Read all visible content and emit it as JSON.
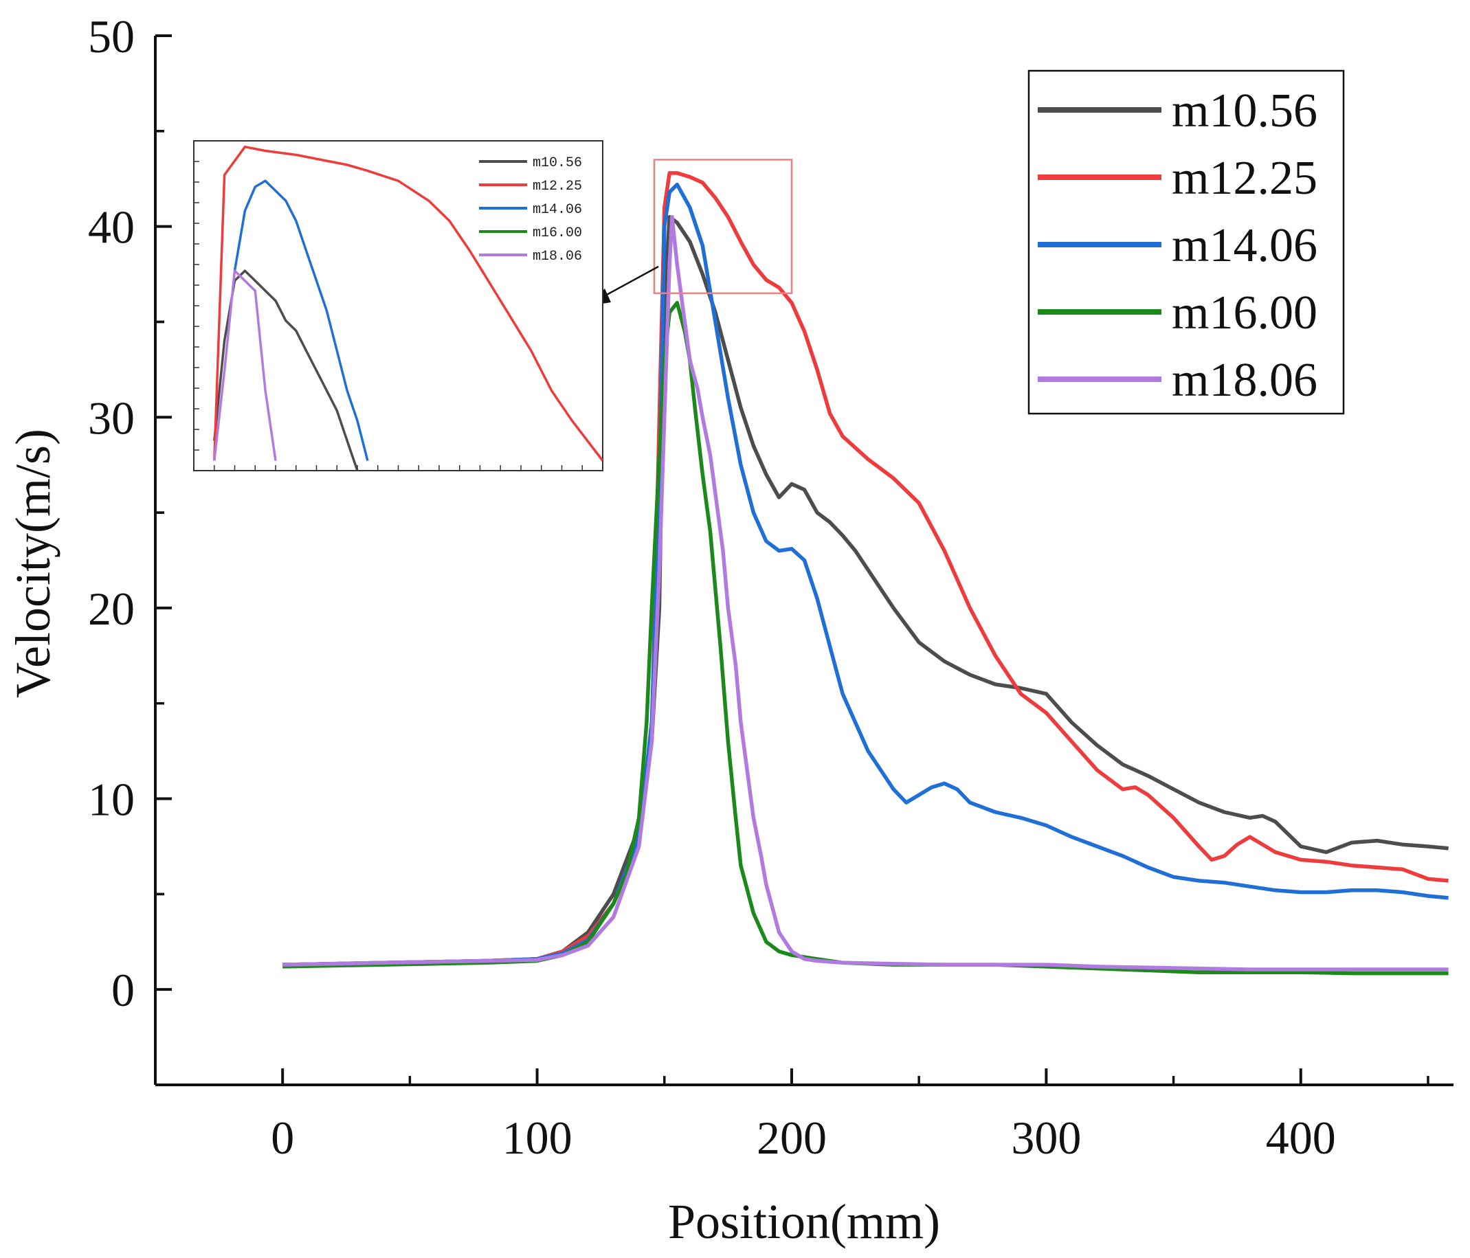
{
  "chart_data": {
    "type": "line",
    "xlabel": "Position(mm)",
    "ylabel": "Velocity(m/s)",
    "xlim": [
      -50,
      460
    ],
    "ylim": [
      -5,
      50
    ],
    "xticks": [
      0,
      100,
      200,
      300,
      400
    ],
    "yticks": [
      0,
      10,
      20,
      30,
      40,
      50
    ],
    "grid": false,
    "legend_position": "top-right",
    "series": [
      {
        "name": "m10.56",
        "color": "#4d4d4d",
        "x": [
          0,
          20,
          40,
          60,
          80,
          100,
          110,
          120,
          130,
          140,
          145,
          148,
          150,
          152,
          155,
          160,
          165,
          170,
          175,
          180,
          185,
          190,
          195,
          200,
          205,
          210,
          215,
          220,
          225,
          230,
          240,
          250,
          260,
          270,
          280,
          290,
          300,
          310,
          320,
          330,
          340,
          350,
          360,
          370,
          380,
          385,
          390,
          400,
          410,
          420,
          430,
          440,
          450,
          458
        ],
        "y": [
          1.3,
          1.35,
          1.4,
          1.45,
          1.5,
          1.6,
          2.0,
          3.0,
          5.0,
          8.5,
          13,
          20,
          36,
          40.5,
          40.2,
          39.2,
          37.5,
          35.5,
          33.0,
          30.5,
          28.5,
          27.0,
          25.8,
          26.5,
          26.2,
          25.0,
          24.5,
          23.8,
          23.0,
          22.0,
          20.0,
          18.2,
          17.2,
          16.5,
          16.0,
          15.8,
          15.5,
          14.0,
          12.8,
          11.8,
          11.2,
          10.5,
          9.8,
          9.3,
          9.0,
          9.1,
          8.8,
          7.5,
          7.2,
          7.7,
          7.8,
          7.6,
          7.5,
          7.4
        ]
      },
      {
        "name": "m12.25",
        "color": "#ee3b3b",
        "x": [
          0,
          20,
          40,
          60,
          80,
          100,
          110,
          120,
          130,
          140,
          145,
          148,
          150,
          152,
          155,
          160,
          165,
          170,
          175,
          180,
          185,
          190,
          195,
          200,
          205,
          210,
          215,
          220,
          230,
          240,
          250,
          260,
          270,
          280,
          290,
          300,
          310,
          320,
          330,
          335,
          340,
          350,
          360,
          365,
          370,
          375,
          380,
          385,
          390,
          400,
          410,
          420,
          430,
          440,
          450,
          458
        ],
        "y": [
          1.3,
          1.35,
          1.4,
          1.45,
          1.5,
          1.6,
          2.0,
          2.8,
          4.5,
          8.0,
          13,
          30,
          41,
          42.8,
          42.8,
          42.6,
          42.3,
          41.5,
          40.5,
          39.2,
          38.0,
          37.2,
          36.8,
          36.0,
          34.5,
          32.5,
          30.2,
          29.0,
          27.8,
          26.8,
          25.5,
          23.0,
          20.0,
          17.5,
          15.5,
          14.5,
          13.0,
          11.5,
          10.5,
          10.6,
          10.2,
          9.0,
          7.5,
          6.8,
          7.0,
          7.6,
          8.0,
          7.6,
          7.2,
          6.8,
          6.7,
          6.5,
          6.4,
          6.3,
          5.8,
          5.7
        ]
      },
      {
        "name": "m14.06",
        "color": "#1f6fd6",
        "x": [
          0,
          20,
          40,
          60,
          80,
          100,
          110,
          120,
          130,
          140,
          145,
          148,
          150,
          152,
          155,
          160,
          165,
          170,
          175,
          180,
          185,
          190,
          195,
          200,
          205,
          210,
          215,
          220,
          230,
          240,
          245,
          250,
          255,
          260,
          265,
          270,
          280,
          290,
          300,
          310,
          320,
          330,
          340,
          350,
          360,
          370,
          380,
          390,
          400,
          410,
          420,
          430,
          440,
          450,
          458
        ],
        "y": [
          1.3,
          1.35,
          1.4,
          1.45,
          1.5,
          1.6,
          1.9,
          2.6,
          4.5,
          8.0,
          14,
          26,
          40,
          41.8,
          42.2,
          41.0,
          39.0,
          35.0,
          31.0,
          27.5,
          25.0,
          23.5,
          23.0,
          23.1,
          22.5,
          20.5,
          18.0,
          15.5,
          12.5,
          10.5,
          9.8,
          10.2,
          10.6,
          10.8,
          10.5,
          9.8,
          9.3,
          9.0,
          8.6,
          8.0,
          7.5,
          7.0,
          6.4,
          5.9,
          5.7,
          5.6,
          5.4,
          5.2,
          5.1,
          5.1,
          5.2,
          5.2,
          5.1,
          4.9,
          4.8
        ]
      },
      {
        "name": "m16.00",
        "color": "#1b8a1b",
        "x": [
          0,
          20,
          40,
          60,
          80,
          100,
          110,
          120,
          130,
          135,
          140,
          143,
          145,
          148,
          150,
          152,
          155,
          158,
          160,
          162,
          165,
          168,
          170,
          172,
          175,
          178,
          180,
          185,
          190,
          195,
          200,
          210,
          220,
          240,
          260,
          280,
          300,
          320,
          340,
          360,
          380,
          400,
          420,
          440,
          458
        ],
        "y": [
          1.2,
          1.25,
          1.3,
          1.35,
          1.4,
          1.5,
          1.8,
          2.5,
          4.5,
          6.0,
          9.0,
          14.0,
          20.0,
          28.0,
          33.0,
          35.5,
          36.0,
          34.5,
          33.0,
          30.5,
          27.0,
          24.0,
          21.0,
          18.0,
          13.0,
          9.0,
          6.5,
          4.0,
          2.5,
          2.0,
          1.8,
          1.6,
          1.4,
          1.3,
          1.3,
          1.3,
          1.2,
          1.1,
          1.0,
          0.9,
          0.9,
          0.9,
          0.85,
          0.85,
          0.85
        ]
      },
      {
        "name": "m18.06",
        "color": "#b07ae0",
        "x": [
          0,
          20,
          40,
          60,
          80,
          100,
          110,
          120,
          130,
          140,
          145,
          148,
          150,
          152,
          153,
          155,
          158,
          160,
          163,
          165,
          168,
          170,
          173,
          175,
          178,
          180,
          183,
          185,
          188,
          190,
          193,
          195,
          200,
          205,
          210,
          220,
          240,
          260,
          280,
          300,
          320,
          340,
          360,
          380,
          400,
          420,
          440,
          458
        ],
        "y": [
          1.3,
          1.35,
          1.4,
          1.45,
          1.5,
          1.55,
          1.8,
          2.3,
          3.8,
          7.5,
          13.0,
          22.0,
          30.0,
          38.0,
          40.5,
          38.0,
          35.0,
          33.0,
          31.5,
          30.0,
          28.0,
          26.0,
          23.0,
          20.0,
          17.0,
          14.0,
          11.0,
          9.0,
          7.0,
          5.5,
          4.0,
          3.0,
          2.0,
          1.6,
          1.5,
          1.4,
          1.35,
          1.3,
          1.3,
          1.3,
          1.2,
          1.15,
          1.1,
          1.05,
          1.05,
          1.05,
          1.05,
          1.05
        ]
      }
    ],
    "inset": {
      "xlim": [
        145,
        185
      ],
      "ylim": [
        27,
        43.5
      ],
      "source_region": {
        "x": [
          146,
          200
        ],
        "y": [
          36.5,
          43.5
        ]
      },
      "legend_position": "top-right",
      "series": [
        {
          "name": "m10.56",
          "color": "#4d4d4d",
          "x": [
            147,
            148,
            149,
            150,
            151,
            152,
            153,
            154,
            155,
            156,
            157,
            158,
            159,
            160,
            161
          ],
          "y": [
            28.5,
            33.5,
            36.5,
            37.0,
            36.5,
            36.0,
            35.5,
            34.5,
            34.0,
            33.0,
            32.0,
            31.0,
            30.0,
            28.5,
            27.0
          ]
        },
        {
          "name": "m12.25",
          "color": "#ee3b3b",
          "x": [
            147,
            148,
            149,
            150,
            152,
            155,
            158,
            160,
            162,
            165,
            168,
            170,
            172,
            175,
            178,
            180,
            182,
            185
          ],
          "y": [
            27.5,
            41.8,
            42.5,
            43.2,
            43.0,
            42.8,
            42.5,
            42.3,
            42.0,
            41.5,
            40.5,
            39.5,
            38.0,
            35.5,
            33.0,
            31.0,
            29.5,
            27.5
          ]
        },
        {
          "name": "m14.06",
          "color": "#1f6fd6",
          "x": [
            149,
            150,
            151,
            152,
            153,
            154,
            155,
            156,
            157,
            158,
            159,
            160,
            161,
            162
          ],
          "y": [
            37.0,
            40.0,
            41.2,
            41.5,
            41.0,
            40.5,
            39.5,
            38.0,
            36.5,
            35.0,
            33.0,
            31.0,
            29.5,
            27.5
          ]
        },
        {
          "name": "m18.06",
          "color": "#b07ae0",
          "x": [
            147,
            148,
            149,
            150,
            151,
            152,
            153
          ],
          "y": [
            27.5,
            32.0,
            37.0,
            36.5,
            36.0,
            31.0,
            27.5
          ]
        }
      ]
    }
  }
}
